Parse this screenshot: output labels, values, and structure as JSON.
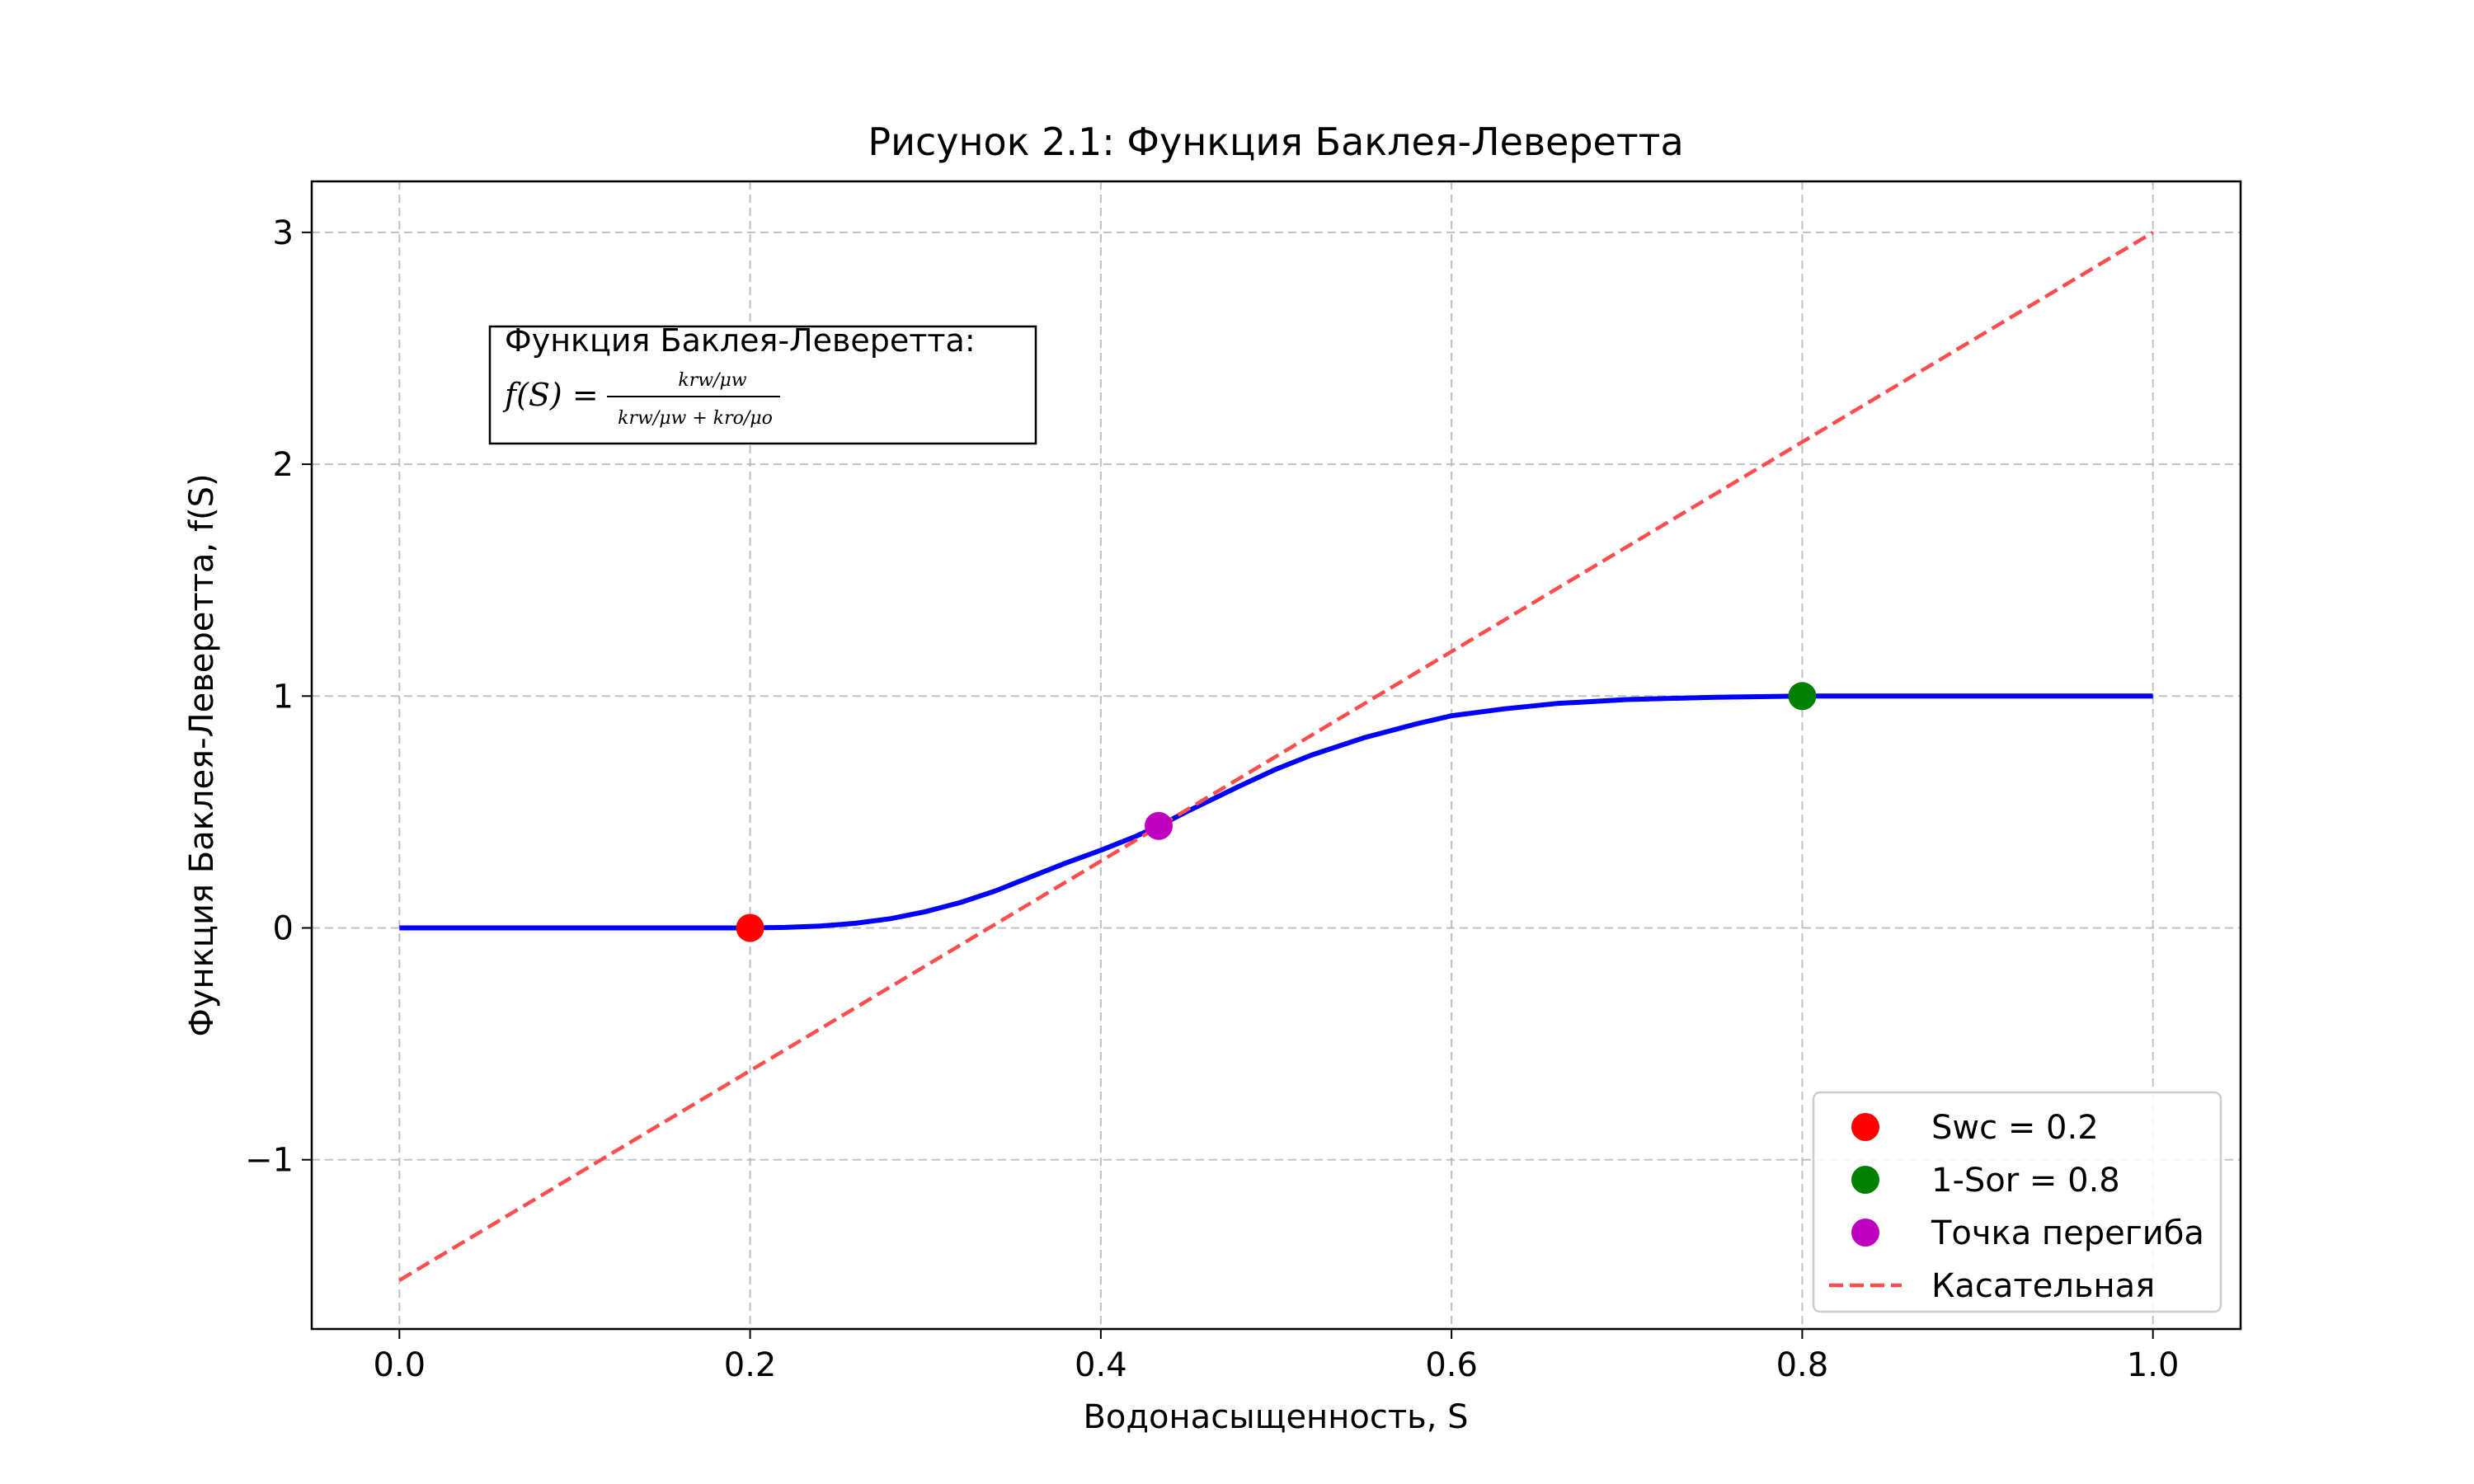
{
  "chart_data": {
    "type": "line",
    "title": "Рисунок 2.1: Функция Баклея-Леверетта",
    "xlabel": "Водонасыщенность, S",
    "ylabel": "Функция Баклея-Леверетта, f(S)",
    "xlim": [
      -0.05,
      1.05
    ],
    "ylim": [
      -1.73,
      3.22
    ],
    "x_ticks": [
      0.0,
      0.2,
      0.4,
      0.6,
      0.8,
      1.0
    ],
    "x_tick_labels": [
      "0.0",
      "0.2",
      "0.4",
      "0.6",
      "0.8",
      "1.0"
    ],
    "y_ticks": [
      -1,
      0,
      1,
      2,
      3
    ],
    "y_tick_labels": [
      "−1",
      "0",
      "1",
      "2",
      "3"
    ],
    "grid": true,
    "legend_position": "lower right",
    "series": [
      {
        "name": "",
        "kind": "line",
        "color": "#0000ff",
        "x": [
          0.0,
          0.2,
          0.22,
          0.24,
          0.26,
          0.28,
          0.3,
          0.32,
          0.34,
          0.36,
          0.38,
          0.4,
          0.42,
          0.433,
          0.45,
          0.48,
          0.5,
          0.52,
          0.55,
          0.58,
          0.6,
          0.63,
          0.66,
          0.7,
          0.75,
          0.8,
          0.85,
          0.9,
          1.0
        ],
        "y": [
          0.0,
          0.0,
          0.002,
          0.008,
          0.02,
          0.04,
          0.07,
          0.11,
          0.16,
          0.22,
          0.28,
          0.335,
          0.395,
          0.44,
          0.505,
          0.615,
          0.685,
          0.745,
          0.82,
          0.88,
          0.915,
          0.945,
          0.968,
          0.985,
          0.995,
          1.0,
          1.0,
          1.0,
          1.0
        ]
      },
      {
        "name": "Касательная",
        "kind": "dashed-line",
        "color": "#ff4d4d",
        "x": [
          0.0,
          1.0
        ],
        "y": [
          -1.52,
          3.0
        ]
      },
      {
        "name": "Swc = 0.2",
        "kind": "point",
        "color": "#ff0000",
        "x": [
          0.2
        ],
        "y": [
          0.0
        ]
      },
      {
        "name": "1-Sor = 0.8",
        "kind": "point",
        "color": "#008000",
        "x": [
          0.8
        ],
        "y": [
          1.0
        ]
      },
      {
        "name": "Точка перегиба",
        "kind": "point",
        "color": "#bf00bf",
        "x": [
          0.433
        ],
        "y": [
          0.44
        ]
      }
    ],
    "legend": [
      {
        "label": "Swc = 0.2",
        "marker": "circle",
        "color": "#ff0000"
      },
      {
        "label": "1-Sor = 0.8",
        "marker": "circle",
        "color": "#008000"
      },
      {
        "label": "Точка перегиба",
        "marker": "circle",
        "color": "#bf00bf"
      },
      {
        "label": "Касательная",
        "marker": "dash",
        "color": "#ff4d4d"
      }
    ],
    "annotation": {
      "heading": "Функция Баклея-Леверетта:",
      "formula_lhs": "f(S) =",
      "formula_numerator": "krw/μw",
      "formula_denominator": "krw/μw + kro/μo"
    }
  }
}
